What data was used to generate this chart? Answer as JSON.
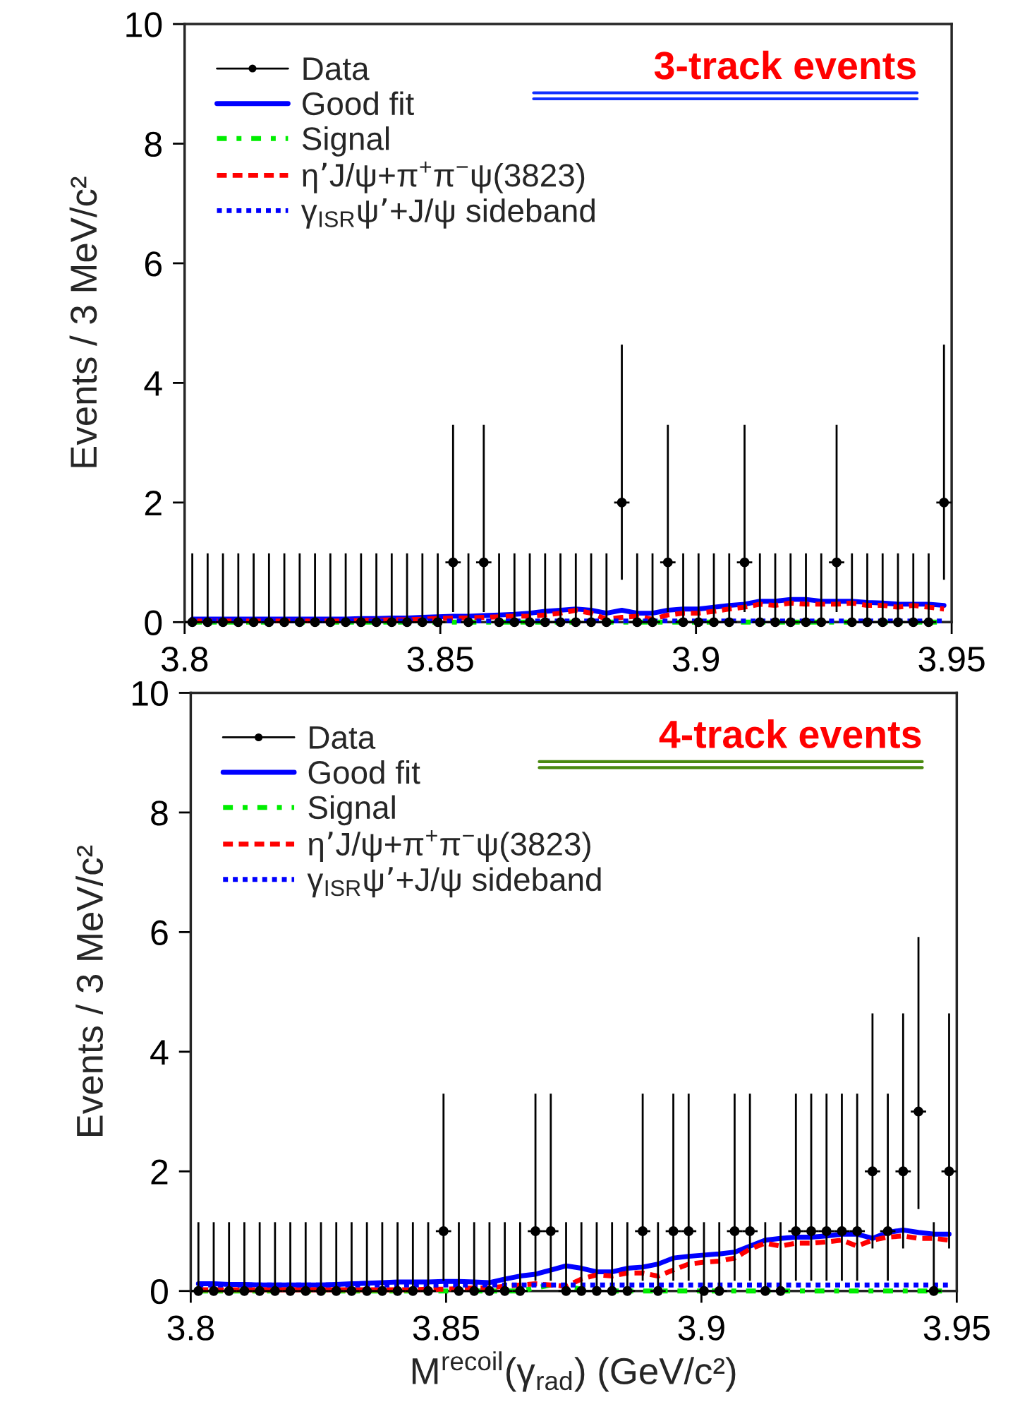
{
  "chart_data": [
    {
      "type": "line",
      "title": "3-track events",
      "ylabel": "Events / 3 MeV/c²",
      "legend": "top left",
      "xlim": [
        3.8,
        3.95
      ],
      "xticks": [
        3.8,
        3.85,
        3.9,
        3.95
      ],
      "ylim": [
        0,
        10
      ],
      "yticks": [
        0,
        2,
        4,
        6,
        8,
        10
      ],
      "grid": false,
      "x": [
        3.8015,
        3.8045,
        3.8075,
        3.8105,
        3.8135,
        3.8165,
        3.8195,
        3.8225,
        3.8255,
        3.8285,
        3.8315,
        3.8345,
        3.8375,
        3.8405,
        3.8435,
        3.8465,
        3.8495,
        3.8525,
        3.8555,
        3.8585,
        3.8615,
        3.8645,
        3.8675,
        3.8705,
        3.8735,
        3.8765,
        3.8795,
        3.8825,
        3.8855,
        3.8885,
        3.8915,
        3.8945,
        3.8975,
        3.9005,
        3.9035,
        3.9065,
        3.9095,
        3.9125,
        3.9155,
        3.9185,
        3.9215,
        3.9245,
        3.9275,
        3.9305,
        3.9335,
        3.9365,
        3.9395,
        3.9425,
        3.9455,
        3.9485
      ],
      "series": [
        {
          "name": "Data",
          "type": "scatter",
          "marker": "circle",
          "color": "#000000",
          "values": [
            0,
            0,
            0,
            0,
            0,
            0,
            0,
            0,
            0,
            0,
            0,
            0,
            0,
            0,
            0,
            0,
            0,
            1,
            0,
            1,
            0,
            0,
            0,
            0,
            0,
            0,
            0,
            0,
            2,
            0,
            0,
            1,
            0,
            0,
            0,
            0,
            1,
            0,
            0,
            0,
            0,
            0,
            1,
            0,
            0,
            0,
            0,
            0,
            0,
            2
          ],
          "errors": [
            [
              0,
              1.15
            ],
            [
              0,
              1.15
            ],
            [
              0,
              1.15
            ],
            [
              0,
              1.15
            ],
            [
              0,
              1.15
            ],
            [
              0,
              1.15
            ],
            [
              0,
              1.15
            ],
            [
              0,
              1.15
            ],
            [
              0,
              1.15
            ],
            [
              0,
              1.15
            ],
            [
              0,
              1.15
            ],
            [
              0,
              1.15
            ],
            [
              0,
              1.15
            ],
            [
              0,
              1.15
            ],
            [
              0,
              1.15
            ],
            [
              0,
              1.15
            ],
            [
              0,
              1.15
            ],
            [
              0.17,
              3.3
            ],
            [
              0,
              1.15
            ],
            [
              0.17,
              3.3
            ],
            [
              0,
              1.15
            ],
            [
              0,
              1.15
            ],
            [
              0,
              1.15
            ],
            [
              0,
              1.15
            ],
            [
              0,
              1.15
            ],
            [
              0,
              1.15
            ],
            [
              0,
              1.15
            ],
            [
              0,
              1.15
            ],
            [
              0.71,
              4.64
            ],
            [
              0,
              1.15
            ],
            [
              0,
              1.15
            ],
            [
              0.17,
              3.3
            ],
            [
              0,
              1.15
            ],
            [
              0,
              1.15
            ],
            [
              0,
              1.15
            ],
            [
              0,
              1.15
            ],
            [
              0.17,
              3.3
            ],
            [
              0,
              1.15
            ],
            [
              0,
              1.15
            ],
            [
              0,
              1.15
            ],
            [
              0,
              1.15
            ],
            [
              0,
              1.15
            ],
            [
              0.17,
              3.3
            ],
            [
              0,
              1.15
            ],
            [
              0,
              1.15
            ],
            [
              0,
              1.15
            ],
            [
              0,
              1.15
            ],
            [
              0,
              1.15
            ],
            [
              0,
              1.15
            ],
            [
              0.71,
              4.64
            ]
          ],
          "xerrors": [
            0.0015,
            0.0015,
            0.0015,
            0.0015,
            0.0015,
            0.0015,
            0.0015,
            0.0015,
            0.0015,
            0.0015,
            0.0015,
            0.0015,
            0.0015,
            0.0015,
            0.0015,
            0.0015,
            0.0015,
            0.0015,
            0.0015,
            0.0015,
            0.0015,
            0.0015,
            0.0015,
            0.0015,
            0.0015,
            0.0015,
            0.0015,
            0.0015,
            0.0015,
            0.0015,
            0.0015,
            0.0015,
            0.0015,
            0.0015,
            0.0015,
            0.0015,
            0.0015,
            0.0015,
            0.0015,
            0.0015,
            0.0015,
            0.0015,
            0.0015,
            0.0015,
            0.0015,
            0.0015,
            0.0015,
            0.0015,
            0.0015,
            0.0015
          ]
        },
        {
          "name": "Good fit",
          "type": "line",
          "line_style": "solid",
          "color": "#0000ff",
          "values": [
            0.05,
            0.05,
            0.05,
            0.05,
            0.05,
            0.05,
            0.05,
            0.05,
            0.05,
            0.05,
            0.05,
            0.06,
            0.06,
            0.07,
            0.07,
            0.08,
            0.09,
            0.1,
            0.1,
            0.11,
            0.12,
            0.13,
            0.15,
            0.18,
            0.2,
            0.22,
            0.2,
            0.15,
            0.2,
            0.15,
            0.15,
            0.2,
            0.22,
            0.22,
            0.25,
            0.28,
            0.3,
            0.35,
            0.35,
            0.38,
            0.38,
            0.35,
            0.35,
            0.35,
            0.33,
            0.32,
            0.3,
            0.3,
            0.3,
            0.28
          ]
        },
        {
          "name": "Signal",
          "type": "line",
          "line_style": "dashdot",
          "color": "#00ee00",
          "values": [
            0,
            0,
            0,
            0,
            0,
            0,
            0,
            0,
            0,
            0,
            0,
            0,
            0,
            0,
            0,
            0,
            0,
            0,
            0,
            0,
            0,
            0,
            0,
            0,
            0,
            0,
            0,
            0,
            0,
            0,
            0,
            0,
            0,
            0,
            0,
            0,
            0,
            0,
            0,
            0,
            0,
            0,
            0,
            0,
            0,
            0,
            0,
            0,
            0,
            0
          ]
        },
        {
          "name": "η’J/ψ+π$^{+}$π$^{−}$ψ(3823)",
          "type": "line",
          "line_style": "dashed",
          "color": "#ff0000",
          "values": [
            0.02,
            0.02,
            0.02,
            0.02,
            0.02,
            0.02,
            0.02,
            0.02,
            0.02,
            0.02,
            0.02,
            0.03,
            0.03,
            0.04,
            0.04,
            0.05,
            0.06,
            0.07,
            0.07,
            0.08,
            0.09,
            0.1,
            0.1,
            0.12,
            0.15,
            0.2,
            0.15,
            0.05,
            0.08,
            0.1,
            0.05,
            0.12,
            0.15,
            0.15,
            0.18,
            0.22,
            0.25,
            0.3,
            0.28,
            0.32,
            0.3,
            0.3,
            0.3,
            0.32,
            0.28,
            0.28,
            0.25,
            0.28,
            0.25,
            0.22
          ]
        },
        {
          "name": "γ$_{ISR}$ψ’+J/ψ sideband",
          "type": "line",
          "line_style": "dotted",
          "color": "#0000ff",
          "values": [
            0.02,
            0.02,
            0.02,
            0.02,
            0.02,
            0.02,
            0.02,
            0.02,
            0.02,
            0.02,
            0.02,
            0.02,
            0.02,
            0.02,
            0.02,
            0.02,
            0.02,
            0.02,
            0.02,
            0.02,
            0.02,
            0.02,
            0.02,
            0.02,
            0.02,
            0.02,
            0.02,
            0.02,
            0.02,
            0.02,
            0.02,
            0.02,
            0.02,
            0.02,
            0.02,
            0.02,
            0.02,
            0.02,
            0.02,
            0.02,
            0.02,
            0.02,
            0.02,
            0.02,
            0.02,
            0.02,
            0.02,
            0.02,
            0.02,
            0.02
          ]
        }
      ]
    },
    {
      "type": "line",
      "title": "4-track events",
      "ylabel": "Events / 3 MeV/c²",
      "xlabel": "M$^{recoil}$(γ$_{rad}$) (GeV/c²)",
      "legend": "top left",
      "xlim": [
        3.8,
        3.95
      ],
      "xticks": [
        3.8,
        3.85,
        3.9,
        3.95
      ],
      "ylim": [
        0,
        10
      ],
      "yticks": [
        0,
        2,
        4,
        6,
        8,
        10
      ],
      "grid": false,
      "x": [
        3.8015,
        3.8045,
        3.8075,
        3.8105,
        3.8135,
        3.8165,
        3.8195,
        3.8225,
        3.8255,
        3.8285,
        3.8315,
        3.8345,
        3.8375,
        3.8405,
        3.8435,
        3.8465,
        3.8495,
        3.8525,
        3.8555,
        3.8585,
        3.8615,
        3.8645,
        3.8675,
        3.8705,
        3.8735,
        3.8765,
        3.8795,
        3.8825,
        3.8855,
        3.8885,
        3.8915,
        3.8945,
        3.8975,
        3.9005,
        3.9035,
        3.9065,
        3.9095,
        3.9125,
        3.9155,
        3.9185,
        3.9215,
        3.9245,
        3.9275,
        3.9305,
        3.9335,
        3.9365,
        3.9395,
        3.9425,
        3.9455,
        3.9485
      ],
      "series": [
        {
          "name": "Data",
          "type": "scatter",
          "marker": "circle",
          "color": "#000000",
          "values": [
            0,
            0,
            0,
            0,
            0,
            0,
            0,
            0,
            0,
            0,
            0,
            0,
            0,
            0,
            0,
            0,
            1,
            0,
            0,
            0,
            0,
            0,
            1,
            1,
            0,
            0,
            0,
            0,
            0,
            1,
            0,
            1,
            1,
            0,
            0,
            1,
            1,
            0,
            0,
            1,
            1,
            1,
            1,
            1,
            2,
            1,
            2,
            3,
            0,
            2
          ],
          "errors": [
            [
              0,
              1.15
            ],
            [
              0,
              1.15
            ],
            [
              0,
              1.15
            ],
            [
              0,
              1.15
            ],
            [
              0,
              1.15
            ],
            [
              0,
              1.15
            ],
            [
              0,
              1.15
            ],
            [
              0,
              1.15
            ],
            [
              0,
              1.15
            ],
            [
              0,
              1.15
            ],
            [
              0,
              1.15
            ],
            [
              0,
              1.15
            ],
            [
              0,
              1.15
            ],
            [
              0,
              1.15
            ],
            [
              0,
              1.15
            ],
            [
              0,
              1.15
            ],
            [
              0.17,
              3.3
            ],
            [
              0,
              1.15
            ],
            [
              0,
              1.15
            ],
            [
              0,
              1.15
            ],
            [
              0,
              1.15
            ],
            [
              0,
              1.15
            ],
            [
              0.17,
              3.3
            ],
            [
              0.17,
              3.3
            ],
            [
              0,
              1.15
            ],
            [
              0,
              1.15
            ],
            [
              0,
              1.15
            ],
            [
              0,
              1.15
            ],
            [
              0,
              1.15
            ],
            [
              0.17,
              3.3
            ],
            [
              0,
              1.15
            ],
            [
              0.17,
              3.3
            ],
            [
              0.17,
              3.3
            ],
            [
              0,
              1.15
            ],
            [
              0,
              1.15
            ],
            [
              0.17,
              3.3
            ],
            [
              0.17,
              3.3
            ],
            [
              0,
              1.15
            ],
            [
              0,
              1.15
            ],
            [
              0.17,
              3.3
            ],
            [
              0.17,
              3.3
            ],
            [
              0.17,
              3.3
            ],
            [
              0.17,
              3.3
            ],
            [
              0.17,
              3.3
            ],
            [
              0.71,
              4.64
            ],
            [
              0.17,
              3.3
            ],
            [
              0.71,
              4.64
            ],
            [
              1.37,
              5.92
            ],
            [
              0,
              1.15
            ],
            [
              0.71,
              4.64
            ]
          ],
          "xerrors": [
            0.0015,
            0.0015,
            0.0015,
            0.0015,
            0.0015,
            0.0015,
            0.0015,
            0.0015,
            0.0015,
            0.0015,
            0.0015,
            0.0015,
            0.0015,
            0.0015,
            0.0015,
            0.0015,
            0.0015,
            0.0015,
            0.0015,
            0.0015,
            0.0015,
            0.0015,
            0.0015,
            0.0015,
            0.0015,
            0.0015,
            0.0015,
            0.0015,
            0.0015,
            0.0015,
            0.0015,
            0.0015,
            0.0015,
            0.0015,
            0.0015,
            0.0015,
            0.0015,
            0.0015,
            0.0015,
            0.0015,
            0.0015,
            0.0015,
            0.0015,
            0.0015,
            0.0015,
            0.0015,
            0.0015,
            0.0015,
            0.0015,
            0.0015
          ]
        },
        {
          "name": "Good fit",
          "type": "line",
          "line_style": "solid",
          "color": "#0000ff",
          "values": [
            0.12,
            0.12,
            0.11,
            0.11,
            0.1,
            0.1,
            0.1,
            0.1,
            0.1,
            0.11,
            0.12,
            0.13,
            0.14,
            0.15,
            0.15,
            0.15,
            0.16,
            0.16,
            0.15,
            0.14,
            0.2,
            0.25,
            0.28,
            0.35,
            0.42,
            0.38,
            0.32,
            0.32,
            0.38,
            0.4,
            0.45,
            0.55,
            0.58,
            0.6,
            0.62,
            0.65,
            0.75,
            0.85,
            0.88,
            0.9,
            0.9,
            0.92,
            0.95,
            0.95,
            0.88,
            0.98,
            1.02,
            0.98,
            0.95,
            0.95
          ]
        },
        {
          "name": "Signal",
          "type": "line",
          "line_style": "dashdot",
          "color": "#00ee00",
          "values": [
            0,
            0,
            0,
            0,
            0,
            0,
            0,
            0,
            0,
            0,
            0,
            0,
            0,
            0,
            0,
            0,
            0,
            0,
            0,
            0,
            0,
            0,
            0.05,
            0.1,
            0.08,
            0.03,
            0,
            0,
            0,
            0,
            0,
            0,
            0,
            0,
            0,
            0,
            0,
            0,
            0,
            0,
            0,
            0,
            0,
            0,
            0,
            0,
            0,
            0,
            0,
            0
          ]
        },
        {
          "name": "η’J/ψ+π$^{+}$π$^{−}$ψ(3823)",
          "type": "line",
          "line_style": "dashed",
          "color": "#ff0000",
          "values": [
            0.02,
            0.02,
            0.02,
            0.02,
            0.02,
            0.02,
            0.02,
            0.02,
            0.02,
            0.02,
            0.02,
            0.02,
            0.02,
            0.02,
            0.02,
            0.03,
            0.03,
            0.04,
            0.05,
            0.05,
            0.08,
            0.1,
            0.12,
            0.1,
            0.08,
            0.2,
            0.27,
            0.25,
            0.3,
            0.3,
            0.25,
            0.35,
            0.45,
            0.48,
            0.5,
            0.55,
            0.7,
            0.8,
            0.75,
            0.8,
            0.8,
            0.82,
            0.85,
            0.75,
            0.85,
            0.9,
            0.92,
            0.88,
            0.88,
            0.85
          ]
        },
        {
          "name": "γ$_{ISR}$ψ’+J/ψ sideband",
          "type": "line",
          "line_style": "dotted",
          "color": "#0000ff",
          "values": [
            0.1,
            0.1,
            0.1,
            0.1,
            0.1,
            0.1,
            0.1,
            0.1,
            0.1,
            0.1,
            0.1,
            0.1,
            0.1,
            0.1,
            0.1,
            0.1,
            0.1,
            0.1,
            0.1,
            0.1,
            0.1,
            0.1,
            0.1,
            0.1,
            0.1,
            0.1,
            0.1,
            0.1,
            0.1,
            0.1,
            0.1,
            0.1,
            0.1,
            0.1,
            0.1,
            0.1,
            0.1,
            0.1,
            0.1,
            0.1,
            0.1,
            0.1,
            0.1,
            0.1,
            0.1,
            0.1,
            0.1,
            0.1,
            0.1,
            0.1
          ]
        }
      ]
    }
  ]
}
